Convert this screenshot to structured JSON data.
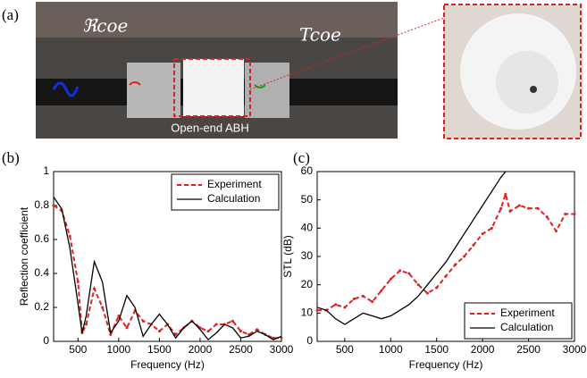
{
  "panels": {
    "a": "(a)",
    "b": "(b)",
    "c": "(c)"
  },
  "photo": {
    "reflection_label": "ℜcoe",
    "transmission_label": "Tcoe",
    "caption": "Open-end ABH"
  },
  "chart_data": [
    {
      "type": "line",
      "xlabel": "Frequency (Hz)",
      "ylabel": "Reflection coefficient",
      "x": [
        200,
        300,
        400,
        500,
        550,
        600,
        700,
        800,
        900,
        1000,
        1100,
        1200,
        1300,
        1400,
        1500,
        1600,
        1700,
        1800,
        1900,
        2000,
        2100,
        2200,
        2300,
        2400,
        2500,
        2600,
        2700,
        2800,
        2900,
        3000
      ],
      "xlim": [
        200,
        3000
      ],
      "xticks": [
        500,
        1000,
        1500,
        2000,
        2500,
        3000
      ],
      "ylim": [
        0,
        1
      ],
      "yticks": [
        0,
        0.2,
        0.4,
        0.6,
        0.8,
        1
      ],
      "legend": "upper right",
      "series": [
        {
          "name": "Experiment",
          "color": "#e02020",
          "linestyle": "--",
          "values": [
            0.8,
            0.77,
            0.62,
            0.35,
            0.05,
            0.1,
            0.31,
            0.2,
            0.04,
            0.15,
            0.08,
            0.18,
            0.12,
            0.1,
            0.06,
            0.1,
            0.04,
            0.08,
            0.12,
            0.08,
            0.06,
            0.1,
            0.1,
            0.12,
            0.06,
            0.04,
            0.07,
            0.04,
            0.02,
            0.02
          ]
        },
        {
          "name": "Calculation",
          "color": "#000000",
          "linestyle": "-",
          "values": [
            0.85,
            0.78,
            0.55,
            0.22,
            0.05,
            0.15,
            0.47,
            0.35,
            0.05,
            0.12,
            0.27,
            0.2,
            0.03,
            0.1,
            0.16,
            0.1,
            0.02,
            0.08,
            0.12,
            0.07,
            0.01,
            0.05,
            0.1,
            0.08,
            0.02,
            0.03,
            0.06,
            0.04,
            0.01,
            0.03
          ]
        }
      ]
    },
    {
      "type": "line",
      "xlabel": "Frequency (Hz)",
      "ylabel": "STL (dB)",
      "x": [
        200,
        300,
        400,
        500,
        600,
        700,
        800,
        900,
        1000,
        1100,
        1200,
        1300,
        1400,
        1500,
        1600,
        1700,
        1800,
        1900,
        2000,
        2100,
        2200,
        2250,
        2300,
        2400,
        2500,
        2600,
        2700,
        2800,
        2900,
        3000
      ],
      "xlim": [
        200,
        3000
      ],
      "xticks": [
        500,
        1000,
        1500,
        2000,
        2500,
        3000
      ],
      "ylim": [
        0,
        60
      ],
      "yticks": [
        0,
        10,
        20,
        30,
        40,
        50,
        60
      ],
      "legend": "lower right",
      "series": [
        {
          "name": "Experiment",
          "color": "#e02020",
          "linestyle": "--",
          "values": [
            11,
            11,
            13,
            12,
            15,
            16,
            14,
            18,
            22,
            25,
            24,
            20,
            17,
            19,
            23,
            27,
            30,
            34,
            38,
            40,
            47,
            52,
            46,
            48,
            47,
            47,
            44,
            39,
            45,
            45
          ]
        },
        {
          "name": "Calculation",
          "color": "#000000",
          "linestyle": "-",
          "values": [
            12,
            11,
            8,
            6,
            8,
            10,
            9,
            8,
            9,
            11,
            13,
            16,
            20,
            24,
            28,
            33,
            38,
            43,
            48,
            53,
            58,
            60,
            null,
            null,
            null,
            null,
            null,
            null,
            null,
            null
          ]
        }
      ]
    }
  ]
}
